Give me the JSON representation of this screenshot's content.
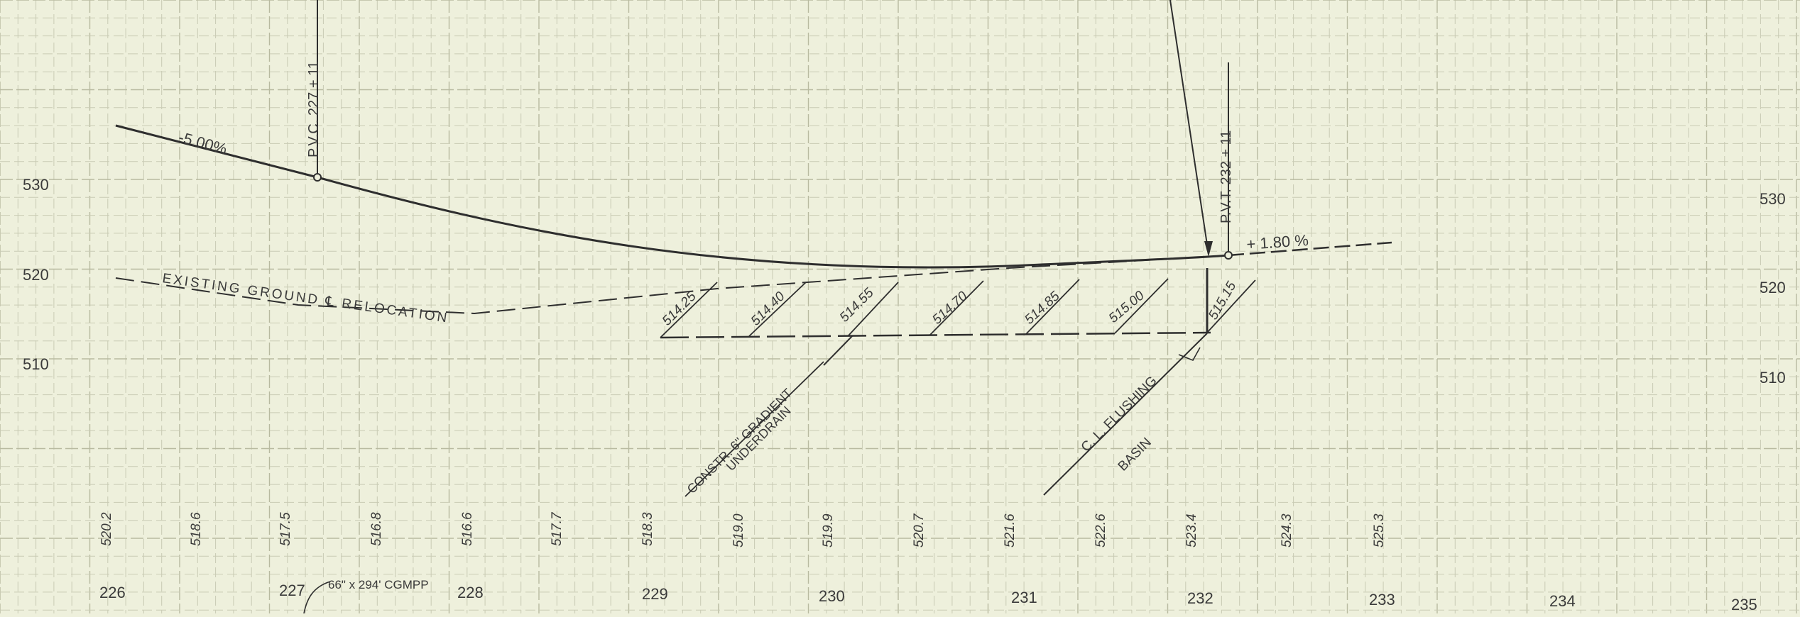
{
  "elevation_labels_left": [
    "530",
    "520",
    "510"
  ],
  "elevation_labels_right": [
    "530",
    "520",
    "510"
  ],
  "stations": [
    "226",
    "227",
    "228",
    "229",
    "230",
    "231",
    "232",
    "233",
    "234",
    "235"
  ],
  "existing_ground_elevations": [
    "520.2",
    "518.6",
    "517.5",
    "516.8",
    "516.6",
    "517.7",
    "518.3",
    "519.0",
    "519.9",
    "520.7",
    "521.6",
    "522.6",
    "523.4",
    "524.3",
    "525.3"
  ],
  "underdrain_elevations": [
    "514.25",
    "514.40",
    "514.55",
    "514.70",
    "514.85",
    "515.00",
    "515.15"
  ],
  "profile": {
    "grade_in": "-5.00%",
    "grade_out": "+ 1.80 %",
    "pvc_label": "P.V.C. 227 + 11",
    "pvt_label": "P.V.T. 232 + 11"
  },
  "annotations": {
    "existing_ground": "EXISTING GROUND ℄ RELOCATION",
    "underdrain_line1": "CONSTR. 6\" GRADIENT",
    "underdrain_line2": "UNDERDRAIN",
    "basin_line1": "C. L. FLUSHING",
    "basin_line2": "BASIN",
    "pipe_note": "66\" x 294' CGMPP"
  },
  "colors": {
    "paper": "#eef0dc",
    "ink": "#2e2e2e",
    "grid": "#c9cbb4"
  }
}
